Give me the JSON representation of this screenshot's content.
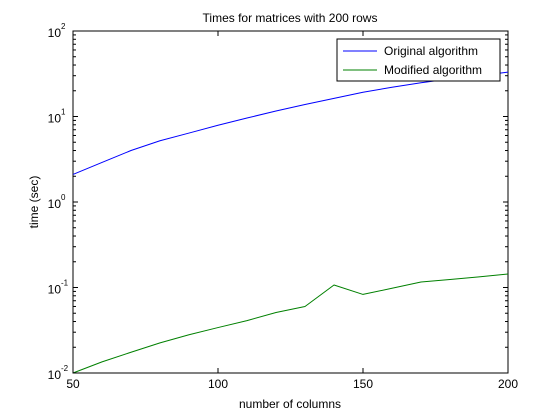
{
  "colors": {
    "background": "#ffffff",
    "axes": "#000000",
    "original": "#0000ff",
    "modified": "#008000"
  },
  "chart_data": {
    "type": "line",
    "title": "Times for matrices with 200 rows",
    "xlabel": "number of columns",
    "ylabel": "time (sec)",
    "xlim": [
      50,
      200
    ],
    "ylim": [
      0.01,
      100
    ],
    "yscale": "log",
    "grid": false,
    "legend_position": "top-right",
    "x_ticks": [
      {
        "value": 50,
        "label": "50"
      },
      {
        "value": 100,
        "label": "100"
      },
      {
        "value": 150,
        "label": "150"
      },
      {
        "value": 200,
        "label": "200"
      }
    ],
    "y_ticks": [
      {
        "value": 0.01,
        "base": "10",
        "exp": "-2"
      },
      {
        "value": 0.1,
        "base": "10",
        "exp": "-1"
      },
      {
        "value": 1,
        "base": "10",
        "exp": "0"
      },
      {
        "value": 10,
        "base": "10",
        "exp": "1"
      },
      {
        "value": 100,
        "base": "10",
        "exp": "2"
      }
    ],
    "series": [
      {
        "name": "Original algorithm",
        "color": "#0000ff",
        "x": [
          50,
          60,
          70,
          80,
          90,
          100,
          110,
          120,
          130,
          140,
          150,
          160,
          170,
          180,
          190,
          200
        ],
        "y": [
          2.1,
          2.9,
          4.0,
          5.2,
          6.4,
          7.9,
          9.6,
          11.6,
          13.8,
          16.3,
          19.2,
          22.0,
          24.8,
          27.5,
          30.0,
          33.0
        ]
      },
      {
        "name": "Modified algorithm",
        "color": "#008000",
        "x": [
          50,
          60,
          70,
          80,
          90,
          100,
          110,
          120,
          130,
          140,
          150,
          160,
          170,
          180,
          190,
          200
        ],
        "y": [
          0.01,
          0.0135,
          0.0175,
          0.0225,
          0.028,
          0.034,
          0.041,
          0.051,
          0.06,
          0.107,
          0.083,
          0.098,
          0.116,
          0.124,
          0.133,
          0.144
        ]
      }
    ]
  }
}
